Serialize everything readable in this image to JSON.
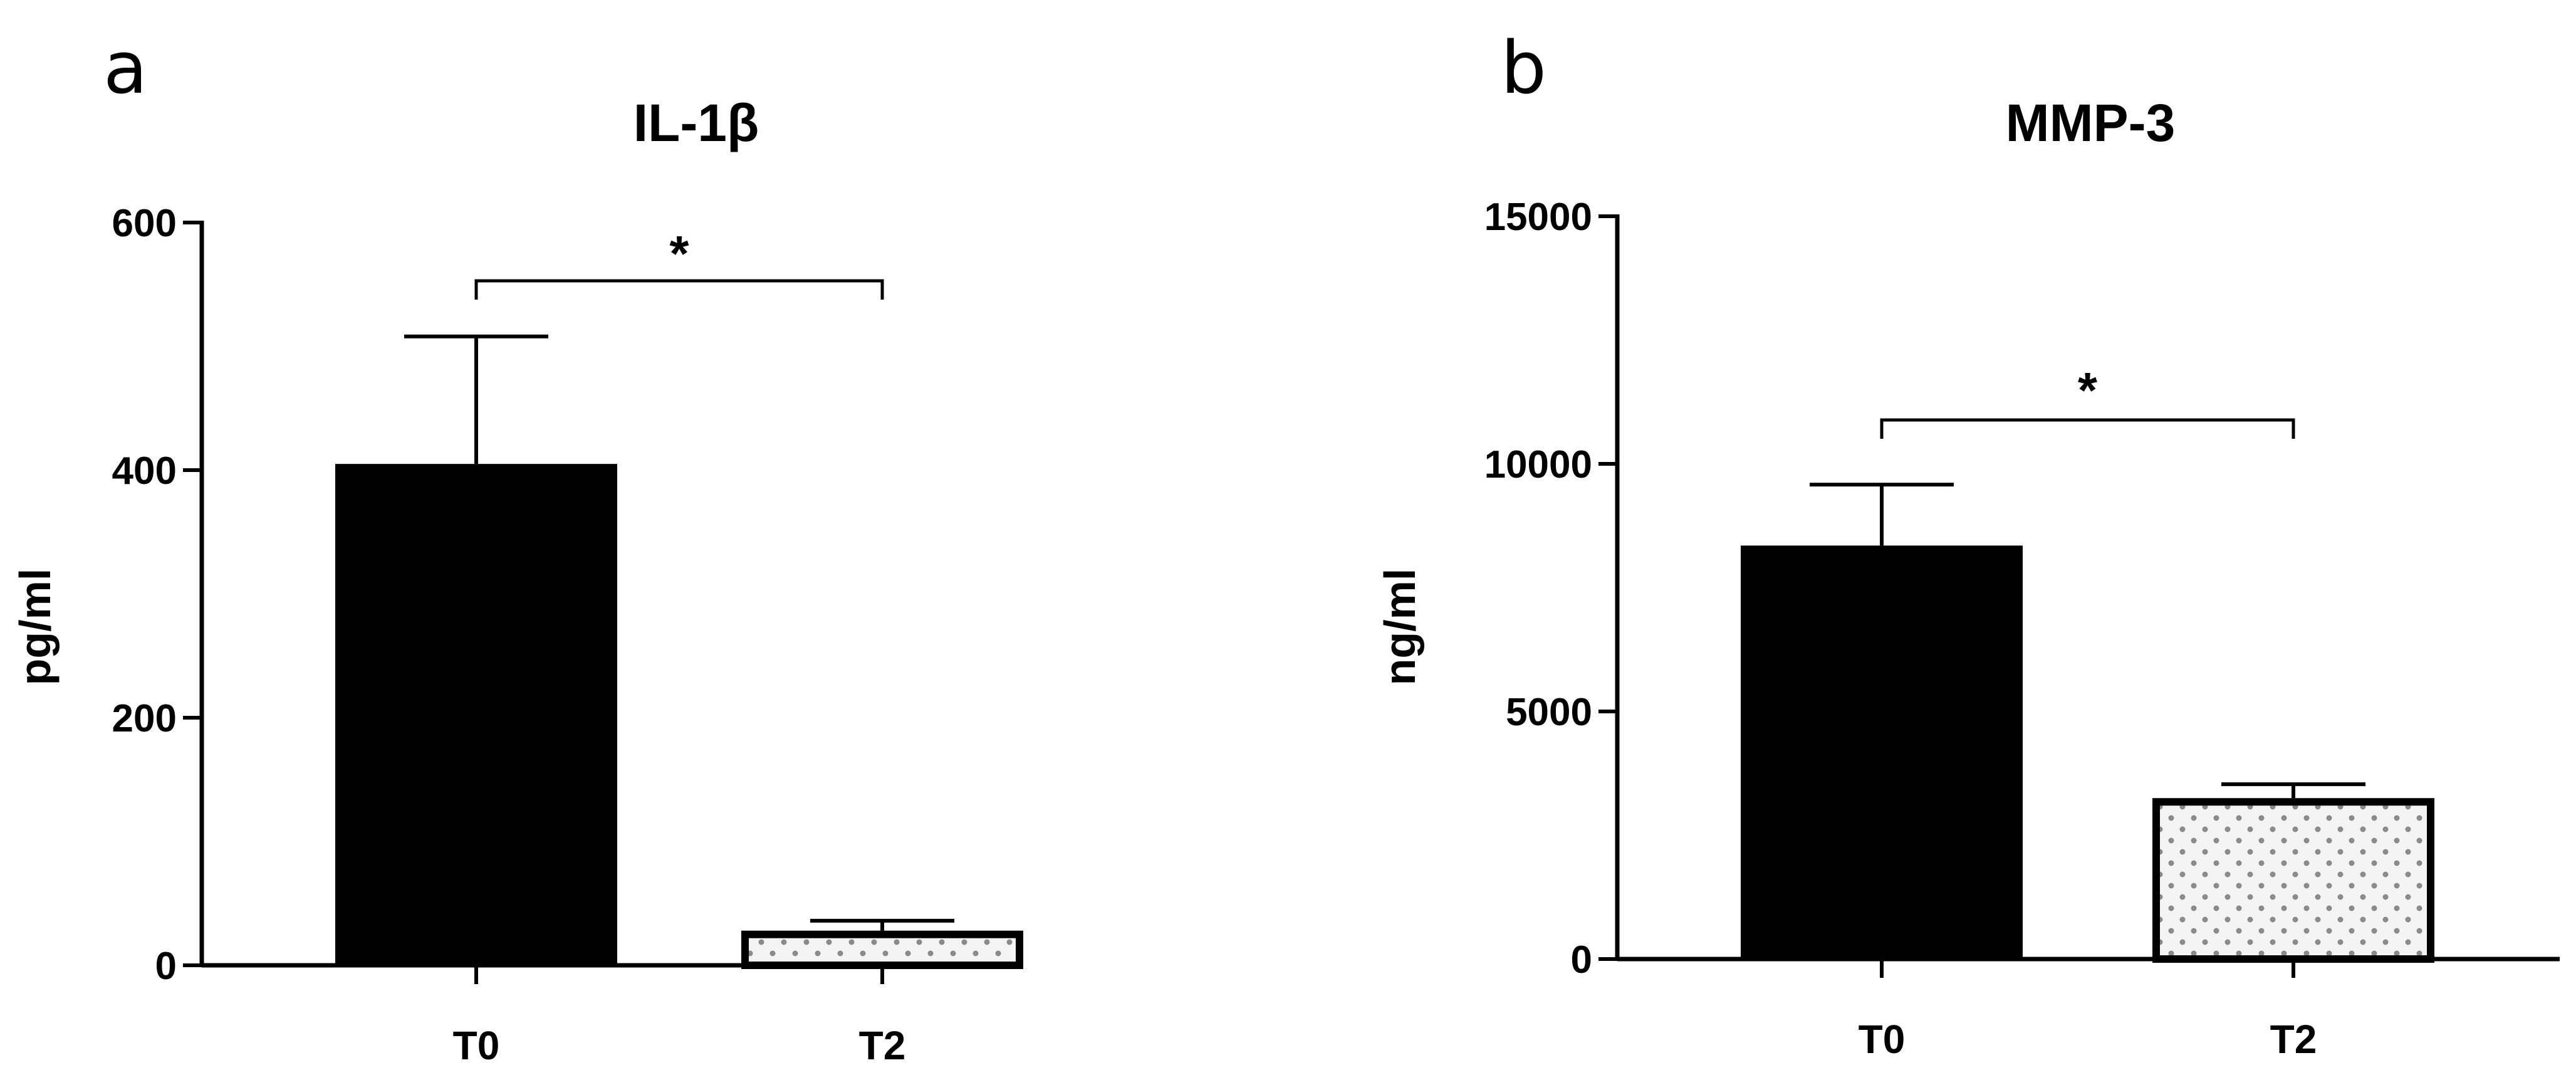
{
  "panels": [
    {
      "letter": "a"
    },
    {
      "letter": "b"
    }
  ],
  "chart_data": [
    {
      "type": "bar",
      "title": "IL-1β",
      "xlabel": "",
      "ylabel": "pg/ml",
      "categories": [
        "T0",
        "T2"
      ],
      "values": [
        405,
        28
      ],
      "error_bars": [
        103,
        8
      ],
      "ylim": [
        0,
        600
      ],
      "yticks": [
        0,
        200,
        400,
        600
      ],
      "fill_patterns": [
        "solid-black",
        "dotted"
      ],
      "significance": {
        "between": [
          "T0",
          "T2"
        ],
        "label": "*"
      },
      "grid": false,
      "legend": "none"
    },
    {
      "type": "bar",
      "title": "MMP-3",
      "xlabel": "",
      "ylabel": "ng/ml",
      "categories": [
        "T0",
        "T2"
      ],
      "values": [
        8350,
        3250
      ],
      "error_bars": [
        1230,
        280
      ],
      "ylim": [
        0,
        15000
      ],
      "yticks": [
        0,
        5000,
        10000,
        15000
      ],
      "fill_patterns": [
        "solid-black",
        "dotted"
      ],
      "significance": {
        "between": [
          "T0",
          "T2"
        ],
        "label": "*"
      },
      "grid": false,
      "legend": "none"
    }
  ]
}
